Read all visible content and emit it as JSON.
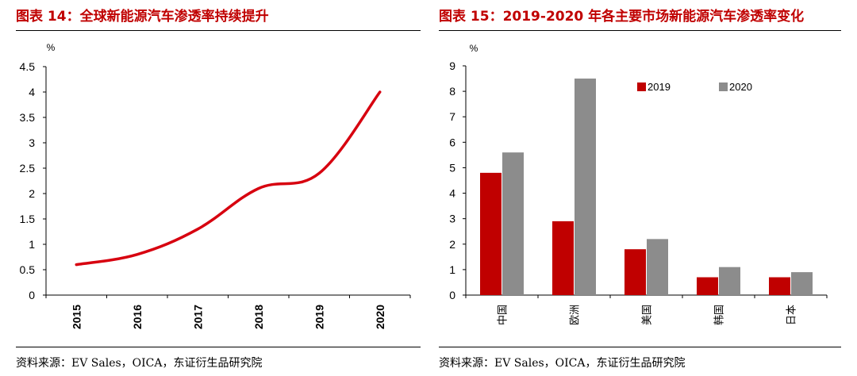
{
  "left": {
    "title": "图表 14：全球新能源汽车渗透率持续提升",
    "source": "资料来源：EV Sales，OICA，东证衍生品研究院"
  },
  "right": {
    "title": "图表 15：2019-2020 年各主要市场新能源汽车渗透率变化",
    "source": "资料来源：EV Sales，OICA，东证衍生品研究院"
  },
  "colors": {
    "title": "#c00000",
    "line": "#d7000f",
    "bar2019": "#c00000",
    "bar2020": "#8c8c8c"
  },
  "chart_data": [
    {
      "type": "line",
      "ylabel": "%",
      "x": [
        "2015",
        "2016",
        "2017",
        "2018",
        "2019",
        "2020"
      ],
      "series": [
        {
          "values": [
            0.6,
            0.8,
            1.3,
            2.1,
            2.4,
            4.0
          ]
        }
      ],
      "ylim": [
        0,
        4.5
      ],
      "yticks": [
        "0",
        "0.5",
        "1",
        "1.5",
        "2",
        "2.5",
        "3",
        "3.5",
        "4",
        "4.5"
      ],
      "grid": false
    },
    {
      "type": "bar",
      "ylabel": "%",
      "categories": [
        "中国",
        "欧洲",
        "美国",
        "韩国",
        "日本"
      ],
      "series": [
        {
          "name": "2019",
          "values": [
            4.8,
            2.9,
            1.8,
            0.7,
            0.7
          ]
        },
        {
          "name": "2020",
          "values": [
            5.6,
            8.5,
            2.2,
            1.1,
            0.9
          ]
        }
      ],
      "ylim": [
        0,
        9
      ],
      "yticks": [
        "0",
        "1",
        "2",
        "3",
        "4",
        "5",
        "6",
        "7",
        "8",
        "9"
      ],
      "legend": "top-right",
      "grid": false
    }
  ]
}
